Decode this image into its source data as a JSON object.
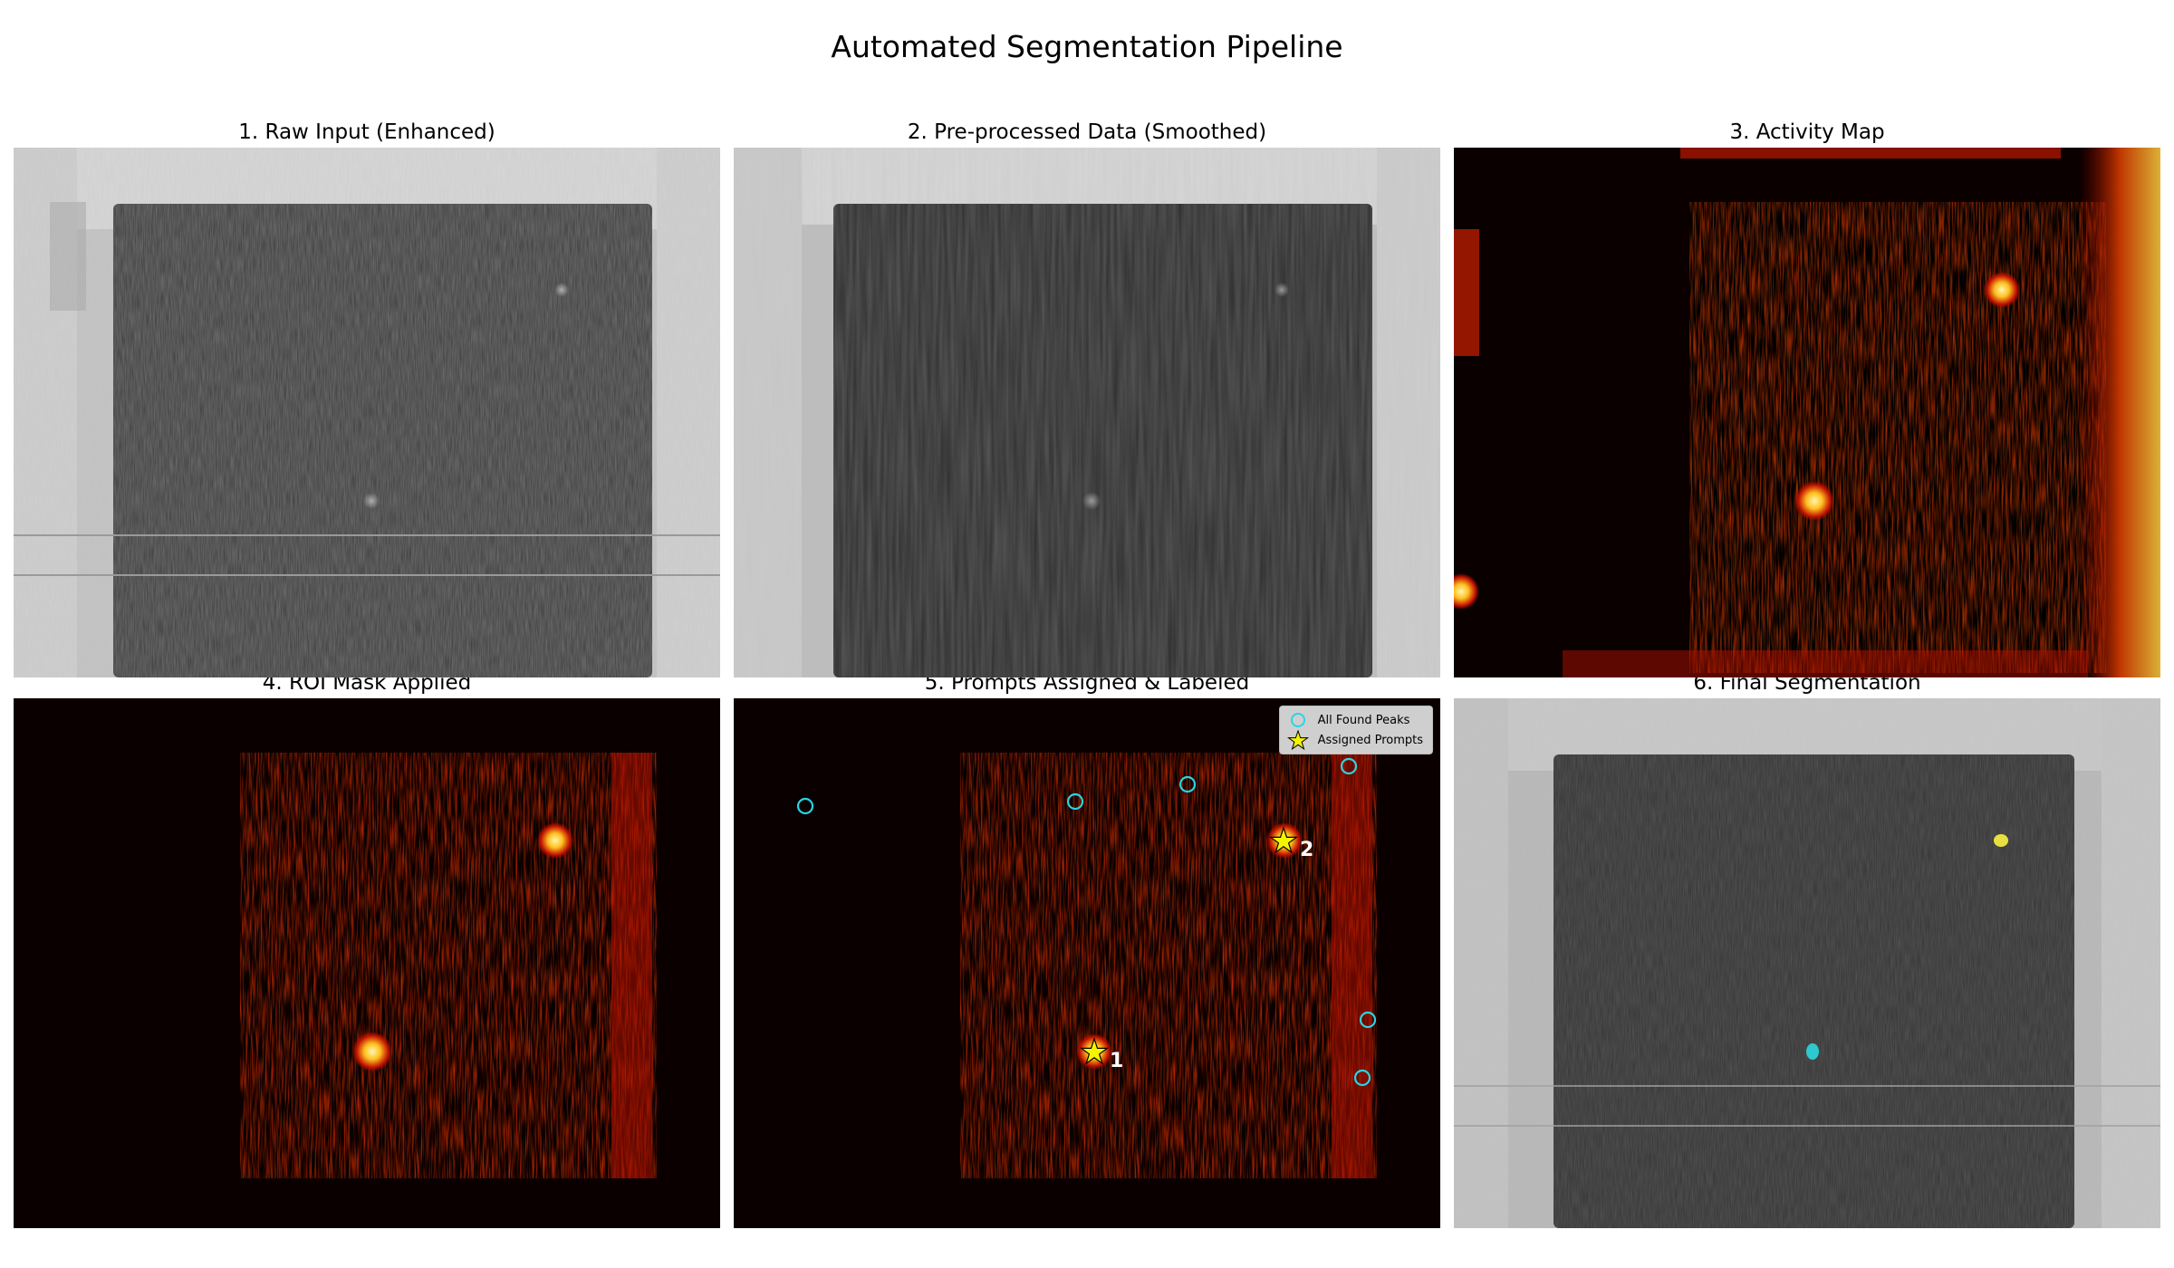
{
  "figure": {
    "title": "Automated Segmentation Pipeline"
  },
  "panels": [
    {
      "id": "raw",
      "title": "1. Raw Input (Enhanced)"
    },
    {
      "id": "smoothed",
      "title": "2. Pre-processed Data (Smoothed)"
    },
    {
      "id": "activity",
      "title": "3. Activity Map"
    },
    {
      "id": "roi",
      "title": "4. ROI Mask Applied"
    },
    {
      "id": "prompts",
      "title": "5. Prompts Assigned & Labeled"
    },
    {
      "id": "final",
      "title": "6. Final Segmentation"
    }
  ],
  "legend": {
    "peaks_label": "All Found Peaks",
    "prompts_label": "Assigned Prompts"
  },
  "prompt_labels": [
    "1",
    "2"
  ],
  "colors": {
    "peak_marker": "#2ad4e0",
    "prompt_marker": "#f5f500",
    "segment_1": "#2ec8d0",
    "segment_2": "#e8e040",
    "heat_hot": "#ffe060",
    "heat_mid": "#c01000"
  }
}
